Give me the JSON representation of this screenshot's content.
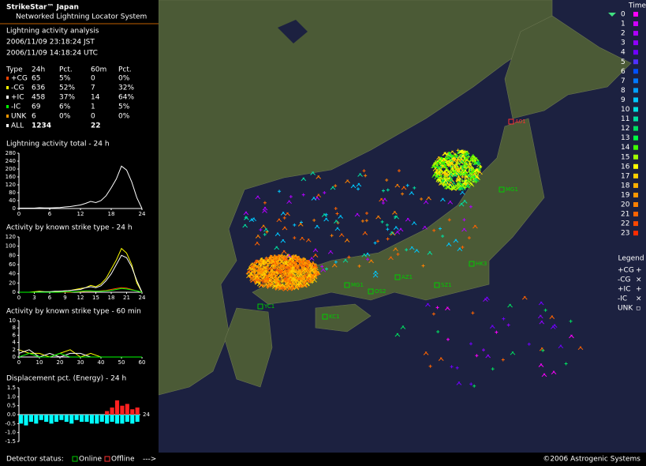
{
  "header": {
    "title": "StrikeStar™ Japan",
    "subtitle": "Networked Lightning Locator System"
  },
  "analysis": {
    "title": "Lightning activity analysis",
    "times": [
      "2006/11/09 23:18:24 JST",
      "2006/11/09 14:18:24 UTC"
    ]
  },
  "table": {
    "columns": [
      "Type",
      "24h",
      "Pct.",
      "60m",
      "Pct."
    ],
    "rows": [
      [
        "+CG",
        "65",
        "5%",
        "0",
        "0%"
      ],
      [
        "-CG",
        "636",
        "52%",
        "7",
        "32%"
      ],
      [
        "+IC",
        "458",
        "37%",
        "14",
        "64%"
      ],
      [
        "-IC",
        "69",
        "6%",
        "1",
        "5%"
      ],
      [
        "UNK",
        "6",
        "0%",
        "0",
        "0%"
      ]
    ],
    "row_colors": [
      "#ff4400",
      "#ffff00",
      "#ffffff",
      "#00ff00",
      "#ff9900"
    ],
    "total": {
      "type": "ALL",
      "h24": "1234",
      "m60": "22",
      "color": "#ffffff"
    }
  },
  "chart_data": [
    {
      "type": "line",
      "title": "Lightning activity total - 24 h",
      "x": [
        0,
        1,
        2,
        3,
        4,
        5,
        6,
        7,
        8,
        9,
        10,
        11,
        12,
        13,
        14,
        15,
        16,
        17,
        18,
        19,
        20,
        21,
        22,
        23,
        24
      ],
      "values": [
        2,
        2,
        2,
        2,
        4,
        3,
        3,
        4,
        5,
        8,
        10,
        14,
        18,
        26,
        36,
        30,
        40,
        65,
        105,
        150,
        215,
        195,
        135,
        55,
        0
      ],
      "color": "#ffffff",
      "xlim": [
        0,
        24
      ],
      "ylim": [
        0,
        280
      ],
      "xticks": [
        0,
        6,
        12,
        18,
        24
      ],
      "yticks": [
        0,
        40,
        80,
        120,
        160,
        200,
        240,
        280
      ]
    },
    {
      "type": "line",
      "title": "Activity by known strike type - 24 h",
      "x": [
        0,
        1,
        2,
        3,
        4,
        5,
        6,
        7,
        8,
        9,
        10,
        11,
        12,
        13,
        14,
        15,
        16,
        17,
        18,
        19,
        20,
        21,
        22,
        23,
        24
      ],
      "series": [
        {
          "color": "#ffff00",
          "values": [
            0,
            0,
            0,
            1,
            2,
            1,
            1,
            1,
            2,
            3,
            4,
            6,
            8,
            10,
            15,
            12,
            18,
            30,
            50,
            70,
            95,
            85,
            60,
            20,
            0
          ]
        },
        {
          "color": "#ffffff",
          "values": [
            0,
            0,
            0,
            0,
            1,
            1,
            1,
            2,
            2,
            3,
            4,
            5,
            6,
            10,
            12,
            10,
            14,
            25,
            40,
            60,
            80,
            75,
            55,
            25,
            0
          ]
        },
        {
          "color": "#ff4400",
          "values": [
            0,
            0,
            0,
            0,
            0,
            0,
            0,
            0,
            0,
            0,
            0,
            1,
            1,
            2,
            2,
            2,
            3,
            4,
            6,
            8,
            10,
            9,
            6,
            3,
            0
          ]
        },
        {
          "color": "#00ff00",
          "values": [
            0,
            0,
            0,
            0,
            0,
            0,
            0,
            0,
            0,
            1,
            1,
            1,
            2,
            3,
            3,
            2,
            2,
            3,
            4,
            6,
            8,
            7,
            5,
            3,
            0
          ]
        }
      ],
      "xlim": [
        0,
        24
      ],
      "ylim": [
        0,
        120
      ],
      "xticks": [
        0,
        3,
        6,
        9,
        12,
        15,
        18,
        21,
        24
      ],
      "yticks": [
        0,
        20,
        40,
        60,
        80,
        100,
        120
      ]
    },
    {
      "type": "line",
      "title": "Activity by known strike type - 60 min",
      "x": [
        0,
        5,
        10,
        15,
        20,
        25,
        30,
        35,
        40,
        45,
        50,
        55,
        60
      ],
      "series": [
        {
          "color": "#ffff00",
          "values": [
            2,
            1,
            1,
            0,
            1,
            2,
            0,
            1,
            0,
            0,
            0,
            0,
            0
          ]
        },
        {
          "color": "#ffffff",
          "values": [
            1,
            2,
            0,
            1,
            0,
            1,
            1,
            0,
            0,
            0,
            0,
            0,
            0
          ]
        },
        {
          "color": "#00ff00",
          "values": [
            0,
            1,
            0,
            0,
            1,
            0,
            0,
            0,
            0,
            0,
            0,
            0,
            0
          ]
        }
      ],
      "xlim": [
        0,
        60
      ],
      "ylim": [
        0,
        10
      ],
      "xticks": [
        0,
        10,
        20,
        30,
        40,
        50,
        60
      ],
      "yticks": [
        0,
        2,
        4,
        6,
        8,
        10
      ]
    },
    {
      "type": "bar",
      "title": "Displacement pct. (Energy) - 24 h",
      "x": [
        0,
        1,
        2,
        3,
        4,
        5,
        6,
        7,
        8,
        9,
        10,
        11,
        12,
        13,
        14,
        15,
        16,
        17,
        18,
        19,
        20,
        21,
        22,
        23
      ],
      "series": [
        {
          "color": "#00ffff",
          "values": [
            -0.5,
            -0.6,
            -0.4,
            -0.5,
            -0.3,
            -0.4,
            -0.5,
            -0.4,
            -0.3,
            -0.4,
            -0.5,
            -0.3,
            -0.4,
            -0.4,
            -0.5,
            -0.5,
            -0.4,
            -0.5,
            -0.4,
            -0.5,
            -0.5,
            -0.4,
            -0.5,
            -0.4
          ]
        },
        {
          "color": "#ff2020",
          "values": [
            0,
            0,
            0,
            0,
            0,
            0,
            0,
            0,
            0,
            0,
            0,
            0,
            0,
            0,
            0,
            0,
            0,
            0.2,
            0.4,
            0.8,
            0.5,
            0.6,
            0.3,
            0.4
          ]
        }
      ],
      "xlim": [
        0,
        24
      ],
      "ylim": [
        -1.5,
        1.5
      ],
      "xticks": [
        24
      ],
      "yticks": [
        1.5,
        {
          "value": 1,
          "label": "1.0"
        },
        0.5,
        {
          "value": 0,
          "label": "0.0"
        },
        -0.5,
        {
          "value": -1,
          "label": "-1.0"
        },
        -1.5
      ]
    }
  ],
  "time_legend": {
    "title": "Time",
    "hours": [
      0,
      1,
      2,
      3,
      4,
      5,
      6,
      7,
      8,
      9,
      10,
      11,
      12,
      13,
      14,
      15,
      16,
      17,
      18,
      19,
      20,
      21,
      22,
      23
    ],
    "colors": [
      "#ff00ff",
      "#d000ff",
      "#b000ff",
      "#9000ff",
      "#7000ff",
      "#5030ff",
      "#0050ff",
      "#0078ff",
      "#00a0ff",
      "#00c8ff",
      "#00e0e0",
      "#00e0a0",
      "#00e060",
      "#00ff40",
      "#40ff00",
      "#a0ff00",
      "#ffff00",
      "#ffd000",
      "#ffb000",
      "#ff9800",
      "#ff8000",
      "#ff6400",
      "#ff4800",
      "#ff2c00"
    ]
  },
  "legend": {
    "title": "Legend",
    "entries": [
      {
        "label": "+CG",
        "symbol": "+"
      },
      {
        "label": "-CG",
        "symbol": "×"
      },
      {
        "label": "+IC",
        "symbol": "+"
      },
      {
        "label": "-IC",
        "symbol": "×"
      },
      {
        "label": "UNK",
        "symbol": "▫"
      }
    ]
  },
  "stations": [
    {
      "code": "A01",
      "color": "#ff3030"
    },
    {
      "code": "MG1",
      "color": "#00cc00"
    },
    {
      "code": "HK3",
      "color": "#00cc00"
    },
    {
      "code": "AZ1",
      "color": "#00cc00"
    },
    {
      "code": "SZ1",
      "color": "#00cc00"
    },
    {
      "code": "MG1",
      "color": "#00cc00"
    },
    {
      "code": "OS2",
      "color": "#00cc00"
    },
    {
      "code": "KC1",
      "color": "#00cc00"
    },
    {
      "code": "YC1",
      "color": "#00cc00"
    }
  ],
  "footer": {
    "status_label": "Detector status:",
    "online": "Online",
    "offline": "Offline",
    "arrow": "--->",
    "copyright": "©2006 Astrogenic Systems"
  }
}
